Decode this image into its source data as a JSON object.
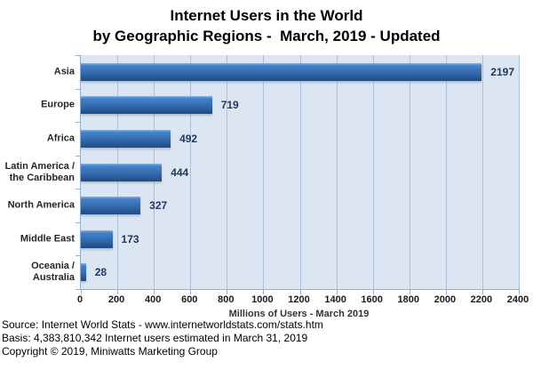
{
  "chart_data": {
    "type": "bar",
    "orientation": "horizontal",
    "title": "Internet Users in the World",
    "subtitle": "by Geographic Regions -  March, 2019 - Updated",
    "categories": [
      "Asia",
      "Europe",
      "Africa",
      "Latin America /\nthe Caribbean",
      "North America",
      "Middle East",
      "Oceania  /\nAustralia"
    ],
    "values": [
      2197,
      719,
      492,
      444,
      327,
      173,
      28
    ],
    "value_labels": [
      "2197",
      "719",
      "492",
      "444",
      "327",
      "173",
      "28"
    ],
    "xlabel": "Millions of Users - March 2019",
    "xlim": [
      0,
      2400
    ],
    "xticks": [
      0,
      200,
      400,
      600,
      800,
      1000,
      1200,
      1400,
      1600,
      1800,
      2000,
      2200,
      2400
    ],
    "grid": true,
    "legend": false
  },
  "footer": {
    "lines": [
      "Source: Internet World Stats - www.internetworldstats.com/stats.htm",
      "Basis: 4,383,810,342 Internet users estimated in March 31, 2019",
      "Copyright © 2019, Miniwatts Marketing Group"
    ]
  },
  "colors": {
    "bar_top": "#8FB2E2",
    "bar_highlight": "#4681C7",
    "bar_mid": "#336BB0",
    "bar_bottom": "#1E4A80",
    "plot_bg": "#DCE6F2",
    "gridline": "#A9C1DF",
    "axis": "#8FAFD4",
    "value_label": "#1F3864"
  }
}
